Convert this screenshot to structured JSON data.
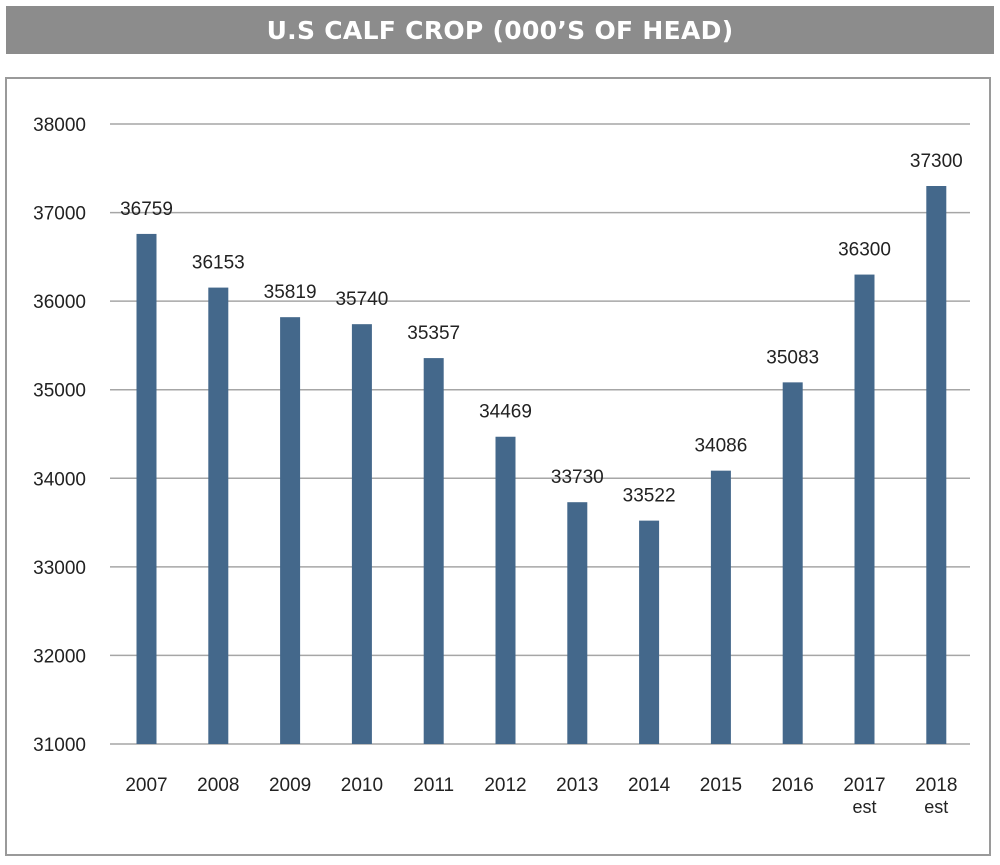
{
  "chart_data": {
    "type": "bar",
    "title": "U.S CALF CROP (000’S OF HEAD)",
    "categories": [
      "2007",
      "2008",
      "2009",
      "2010",
      "2011",
      "2012",
      "2013",
      "2014",
      "2015",
      "2016",
      "2017",
      "2018"
    ],
    "category_sublabels": [
      "",
      "",
      "",
      "",
      "",
      "",
      "",
      "",
      "",
      "",
      "est",
      "est"
    ],
    "values": [
      36759,
      36153,
      35819,
      35740,
      35357,
      34469,
      33730,
      33522,
      34086,
      35083,
      36300,
      37300
    ],
    "data_labels": [
      "36759",
      "36153",
      "35819",
      "35740",
      "35357",
      "34469",
      "33730",
      "33522",
      "34086",
      "35083",
      "36300",
      "37300"
    ],
    "ylim": [
      31000,
      38000
    ],
    "yticks": [
      31000,
      32000,
      33000,
      34000,
      35000,
      36000,
      37000,
      38000
    ],
    "xlabel": "",
    "ylabel": "",
    "grid": true,
    "legend": "none",
    "bar_color": "#44688b",
    "grid_color": "#a6a6a6"
  }
}
